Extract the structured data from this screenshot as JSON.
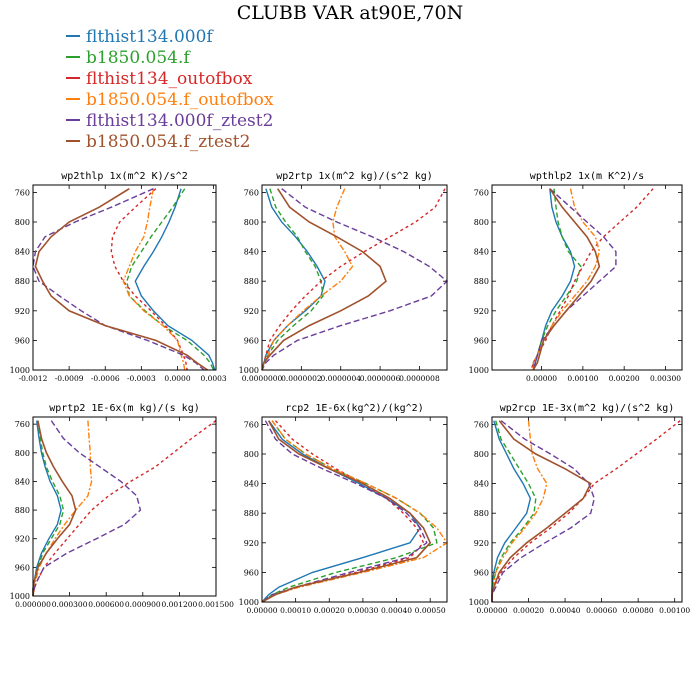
{
  "title": "CLUBB VAR at90E,70N",
  "legend": [
    {
      "label": "flthist134.000f",
      "color": "#1f77b4"
    },
    {
      "label": "b1850.054.f",
      "color": "#2ca02c"
    },
    {
      "label": "flthist134_outofbox",
      "color": "#d62728"
    },
    {
      "label": "b1850.054.f_outofbox",
      "color": "#ff7f0e"
    },
    {
      "label": "flthist134.000f_ztest2",
      "color": "#6a3d9a"
    },
    {
      "label": "b1850.054.f_ztest2",
      "color": "#a0522d"
    }
  ],
  "chart_data": [
    {
      "type": "line",
      "title": "wp2thlp  1x(m^2 K)/s^2",
      "xlim": [
        -0.0012,
        0.00032
      ],
      "ylim": [
        1000,
        750
      ],
      "xticks": [
        "-0.0012",
        "-0.0009",
        "-0.0006",
        "-0.0003",
        "0.0000",
        "0.0003"
      ],
      "xtick_values": [
        -0.0012,
        -0.0009,
        -0.0006,
        -0.0003,
        0.0,
        0.0003
      ],
      "yticks": [
        760,
        800,
        840,
        880,
        920,
        960,
        1000
      ],
      "y": [
        755,
        780,
        800,
        820,
        840,
        860,
        880,
        900,
        920,
        940,
        960,
        980,
        990,
        1000
      ],
      "series": [
        {
          "values": [
            3e-05,
            -2e-05,
            -7e-05,
            -0.00013,
            -0.0002,
            -0.00028,
            -0.00035,
            -0.0003,
            -0.0002,
            -8e-05,
            0.00012,
            0.00026,
            0.00029,
            0.00031
          ]
        },
        {
          "values": [
            6e-05,
            -4e-05,
            -0.00013,
            -0.00022,
            -0.0003,
            -0.00038,
            -0.00042,
            -0.0004,
            -0.00027,
            -0.00012,
            8e-05,
            0.00022,
            0.00027,
            0.0003
          ]
        },
        {
          "values": [
            -0.00018,
            -0.00035,
            -0.00048,
            -0.00054,
            -0.00055,
            -0.00052,
            -0.00045,
            -0.00035,
            -0.00022,
            -0.0001,
            0.0,
            5e-05,
            7e-05,
            8e-05
          ]
        },
        {
          "values": [
            -0.0002,
            -0.00023,
            -0.00025,
            -0.00028,
            -0.00035,
            -0.0004,
            -0.00045,
            -0.0004,
            -0.00028,
            -0.00012,
            0.0,
            3e-05,
            5e-05,
            6e-05
          ]
        },
        {
          "values": [
            -0.0002,
            -0.00055,
            -0.00085,
            -0.0011,
            -0.00118,
            -0.0012,
            -0.00115,
            -0.00098,
            -0.0008,
            -0.0006,
            -0.00025,
            5e-05,
            0.00015,
            0.00022
          ]
        },
        {
          "values": [
            -0.0004,
            -0.00065,
            -0.0009,
            -0.00105,
            -0.00115,
            -0.00118,
            -0.00112,
            -0.00105,
            -0.0009,
            -0.0006,
            -0.00018,
            8e-05,
            0.00016,
            0.00025
          ]
        }
      ]
    },
    {
      "type": "line",
      "title": "wp2rtp  1x(m^2 kg)/(s^2 kg)",
      "xlim": [
        0.0,
        9.4e-07
      ],
      "ylim": [
        1000,
        750
      ],
      "xticks": [
        "0.0000000",
        "0.0000002",
        "0.0000004",
        "0.0000006",
        "0.0000008"
      ],
      "xtick_values": [
        0.0,
        2e-07,
        4e-07,
        6e-07,
        8e-07
      ],
      "yticks": [
        760,
        800,
        840,
        880,
        920,
        960,
        1000
      ],
      "y": [
        755,
        780,
        800,
        820,
        840,
        860,
        880,
        900,
        920,
        940,
        960,
        980,
        990,
        1000
      ],
      "series": [
        {
          "values": [
            2e-08,
            5e-08,
            1e-07,
            1.7e-07,
            2.3e-07,
            2.8e-07,
            3.2e-07,
            3e-07,
            2.2e-07,
            1.3e-07,
            6e-08,
            2e-08,
            1e-08,
            0.0
          ]
        },
        {
          "values": [
            4e-08,
            7e-08,
            1.2e-07,
            1.8e-07,
            2.2e-07,
            2.7e-07,
            3e-07,
            3.1e-07,
            2.5e-07,
            1.6e-07,
            8e-08,
            3e-08,
            1e-08,
            0.0
          ]
        },
        {
          "values": [
            9.3e-07,
            8.8e-07,
            7.8e-07,
            6.5e-07,
            5.2e-07,
            4e-07,
            3e-07,
            2.2e-07,
            1.5e-07,
            9e-08,
            4e-08,
            2e-08,
            1e-08,
            0.0
          ]
        },
        {
          "values": [
            4.2e-07,
            3.8e-07,
            3.6e-07,
            3.7e-07,
            4.2e-07,
            4.6e-07,
            4e-07,
            3e-07,
            2.1e-07,
            1.3e-07,
            6e-08,
            3e-08,
            1e-08,
            0.0
          ]
        },
        {
          "values": [
            1e-07,
            2.2e-07,
            3.8e-07,
            5.6e-07,
            7.2e-07,
            8.5e-07,
            9.4e-07,
            8.6e-07,
            6.5e-07,
            4e-07,
            1.8e-07,
            6e-08,
            2e-08,
            0.0
          ]
        },
        {
          "values": [
            8e-08,
            1.4e-07,
            2.4e-07,
            3.8e-07,
            5.1e-07,
            6e-07,
            6.3e-07,
            5.4e-07,
            4e-07,
            2.4e-07,
            1.1e-07,
            4e-08,
            1e-08,
            0.0
          ]
        }
      ]
    },
    {
      "type": "line",
      "title": "wpthlp2  1x(m K^2)/s",
      "xlim": [
        -0.0012,
        0.0034
      ],
      "ylim": [
        1000,
        750
      ],
      "xticks": [
        "0.00000",
        "0.00100",
        "0.00200",
        "0.00300"
      ],
      "xtick_values": [
        0.0,
        0.001,
        0.002,
        0.003
      ],
      "yticks": [
        760,
        800,
        840,
        880,
        920,
        960,
        1000
      ],
      "y": [
        755,
        780,
        800,
        820,
        840,
        860,
        880,
        900,
        920,
        940,
        960,
        980,
        990,
        1000
      ],
      "series": [
        {
          "values": [
            0.0002,
            0.00025,
            0.00035,
            0.0005,
            0.0007,
            0.0008,
            0.0007,
            0.0005,
            0.00025,
            0.0001,
            0.0,
            -0.0001,
            -0.00015,
            -0.0002
          ]
        },
        {
          "values": [
            0.0003,
            0.00035,
            0.0004,
            0.0005,
            0.00065,
            0.00095,
            0.00085,
            0.0006,
            0.00035,
            0.00015,
            0.0,
            -0.0001,
            -0.0002,
            -0.0002
          ]
        },
        {
          "values": [
            0.0027,
            0.0023,
            0.0019,
            0.0015,
            0.0012,
            0.001,
            0.0008,
            0.00065,
            0.00045,
            0.00025,
            0.0001,
            -0.0001,
            -0.0002,
            -0.00025
          ]
        },
        {
          "values": [
            0.0007,
            0.0008,
            0.001,
            0.0013,
            0.0014,
            0.0013,
            0.0011,
            0.0008,
            0.0005,
            0.00025,
            5e-05,
            -0.0001,
            -0.0002,
            -0.0002
          ]
        },
        {
          "values": [
            0.0002,
            0.0007,
            0.0011,
            0.0015,
            0.0018,
            0.0018,
            0.0014,
            0.001,
            0.0006,
            0.0003,
            0.0,
            -0.0001,
            -0.00015,
            -0.0002
          ]
        },
        {
          "values": [
            0.0002,
            0.0005,
            0.0008,
            0.0011,
            0.0013,
            0.0014,
            0.0012,
            0.0009,
            0.0006,
            0.0003,
            5e-05,
            -5e-05,
            -0.0001,
            -0.0002
          ]
        }
      ]
    },
    {
      "type": "line",
      "title": "wprtp2  1E-6x(m kg)/(s kg)",
      "xlim": [
        0.0,
        0.0015
      ],
      "ylim": [
        1000,
        750
      ],
      "xticks": [
        "0.000000",
        "0.000300",
        "0.000600",
        "0.000900",
        "0.001200",
        "0.001500"
      ],
      "xtick_values": [
        0.0,
        0.0003,
        0.0006,
        0.0009,
        0.0012,
        0.0015
      ],
      "yticks": [
        760,
        800,
        840,
        880,
        920,
        960,
        1000
      ],
      "y": [
        755,
        780,
        800,
        820,
        840,
        860,
        880,
        900,
        920,
        940,
        960,
        980,
        990,
        1000
      ],
      "series": [
        {
          "values": [
            3e-05,
            5e-05,
            7e-05,
            0.0001,
            0.00014,
            0.0002,
            0.00023,
            0.0002,
            0.00013,
            7e-05,
            3e-05,
            1e-05,
            0.0,
            0.0
          ]
        },
        {
          "values": [
            4e-05,
            6e-05,
            8e-05,
            0.00011,
            0.00016,
            0.00022,
            0.00025,
            0.00022,
            0.00015,
            8e-05,
            4e-05,
            1e-05,
            0.0,
            0.0
          ]
        },
        {
          "values": [
            0.0015,
            0.0013,
            0.00115,
            0.001,
            0.0008,
            0.00062,
            0.00048,
            0.00038,
            0.00028,
            0.00018,
            9e-05,
            3e-05,
            1e-05,
            0.0
          ]
        },
        {
          "values": [
            0.00045,
            0.00046,
            0.00047,
            0.00047,
            0.00048,
            0.00045,
            0.00035,
            0.00026,
            0.00018,
            0.00011,
            5e-05,
            2e-05,
            1e-05,
            0.0
          ]
        },
        {
          "values": [
            0.00015,
            0.00025,
            0.00038,
            0.00055,
            0.00072,
            0.00085,
            0.00088,
            0.00075,
            0.00052,
            0.00028,
            9e-05,
            3e-05,
            1e-05,
            0.0
          ]
        },
        {
          "values": [
            4e-05,
            7e-05,
            0.00011,
            0.00017,
            0.00024,
            0.00032,
            0.00035,
            0.0003,
            0.0002,
            0.00011,
            4e-05,
            1e-05,
            0.0,
            0.0
          ]
        }
      ]
    },
    {
      "type": "line",
      "title": "rcp2  1E-6x(kg^2)/(kg^2)",
      "xlim": [
        0.0,
        0.00055
      ],
      "ylim": [
        1000,
        750
      ],
      "xticks": [
        "0.00000",
        "0.00010",
        "0.00020",
        "0.00030",
        "0.00040",
        "0.00050"
      ],
      "xtick_values": [
        0.0,
        0.0001,
        0.0002,
        0.0003,
        0.0004,
        0.0005
      ],
      "yticks": [
        760,
        800,
        840,
        880,
        920,
        960,
        1000
      ],
      "y": [
        755,
        780,
        800,
        820,
        840,
        860,
        880,
        900,
        920,
        940,
        960,
        980,
        990,
        1000
      ],
      "series": [
        {
          "values": [
            2e-05,
            6e-05,
            0.00012,
            0.0002,
            0.00029,
            0.00037,
            0.00044,
            0.00047,
            0.00044,
            0.0003,
            0.00015,
            5e-05,
            2e-05,
            0.0
          ]
        },
        {
          "values": [
            3e-05,
            7e-05,
            0.00013,
            0.00021,
            0.00031,
            0.0004,
            0.00047,
            0.00051,
            0.00052,
            0.0004,
            0.00022,
            8e-05,
            3e-05,
            0.0
          ]
        },
        {
          "values": [
            4e-05,
            9e-05,
            0.00015,
            0.00022,
            0.0003,
            0.00037,
            0.00042,
            0.00046,
            0.00048,
            0.00044,
            0.00028,
            0.0001,
            4e-05,
            0.0
          ]
        },
        {
          "values": [
            3e-05,
            7e-05,
            0.00013,
            0.00021,
            0.00031,
            0.0004,
            0.00047,
            0.00052,
            0.00055,
            0.00048,
            0.0003,
            0.00011,
            4e-05,
            0.0
          ]
        },
        {
          "values": [
            1e-05,
            4e-05,
            9e-05,
            0.00018,
            0.00028,
            0.00037,
            0.00043,
            0.00047,
            0.00049,
            0.00043,
            0.00026,
            0.0001,
            3e-05,
            0.0
          ]
        },
        {
          "values": [
            2e-05,
            5e-05,
            0.00011,
            0.0002,
            0.0003,
            0.00038,
            0.00044,
            0.00048,
            0.0005,
            0.00046,
            0.00029,
            0.0001,
            4e-05,
            0.0
          ]
        }
      ]
    },
    {
      "type": "line",
      "title": "wp2rcp  1E-3x(m^2 kg)/(s^2 kg)",
      "xlim": [
        0.0,
        0.00104
      ],
      "ylim": [
        1000,
        750
      ],
      "xticks": [
        "0.00000",
        "0.00020",
        "0.00040",
        "0.00060",
        "0.00080",
        "0.00100"
      ],
      "xtick_values": [
        0.0,
        0.0002,
        0.0004,
        0.0006,
        0.0008,
        0.001
      ],
      "yticks": [
        760,
        800,
        840,
        880,
        920,
        960,
        1000
      ],
      "y": [
        755,
        780,
        800,
        820,
        840,
        860,
        880,
        900,
        920,
        940,
        960,
        980,
        990,
        1000
      ],
      "series": [
        {
          "values": [
            1e-05,
            4e-05,
            8e-05,
            0.00012,
            0.00017,
            0.00021,
            0.00019,
            0.00013,
            7e-05,
            3e-05,
            1e-05,
            0.0,
            0.0,
            0.0
          ]
        },
        {
          "values": [
            2e-05,
            5e-05,
            0.0001,
            0.00015,
            0.0002,
            0.00024,
            0.00023,
            0.00017,
            0.0001,
            5e-05,
            2e-05,
            0.0,
            0.0,
            0.0
          ]
        },
        {
          "values": [
            0.00103,
            0.0009,
            0.00079,
            0.00068,
            0.00056,
            0.0005,
            0.00042,
            0.00032,
            0.00021,
            0.00012,
            5e-05,
            1e-05,
            0.0,
            0.0
          ]
        },
        {
          "values": [
            0.0002,
            0.00021,
            0.00022,
            0.00025,
            0.0003,
            0.00028,
            0.00024,
            0.00018,
            0.00011,
            6e-05,
            2e-05,
            1e-05,
            0.0,
            0.0
          ]
        },
        {
          "values": [
            5e-05,
            0.00018,
            0.00032,
            0.00045,
            0.00053,
            0.00056,
            0.00054,
            0.00043,
            0.00029,
            0.00016,
            6e-05,
            2e-05,
            0.0,
            0.0
          ]
        },
        {
          "values": [
            4e-05,
            0.00012,
            0.00024,
            0.0004,
            0.00054,
            0.0005,
            0.0004,
            0.0003,
            0.00019,
            0.0001,
            4e-05,
            1e-05,
            0.0,
            0.0
          ]
        }
      ]
    }
  ]
}
